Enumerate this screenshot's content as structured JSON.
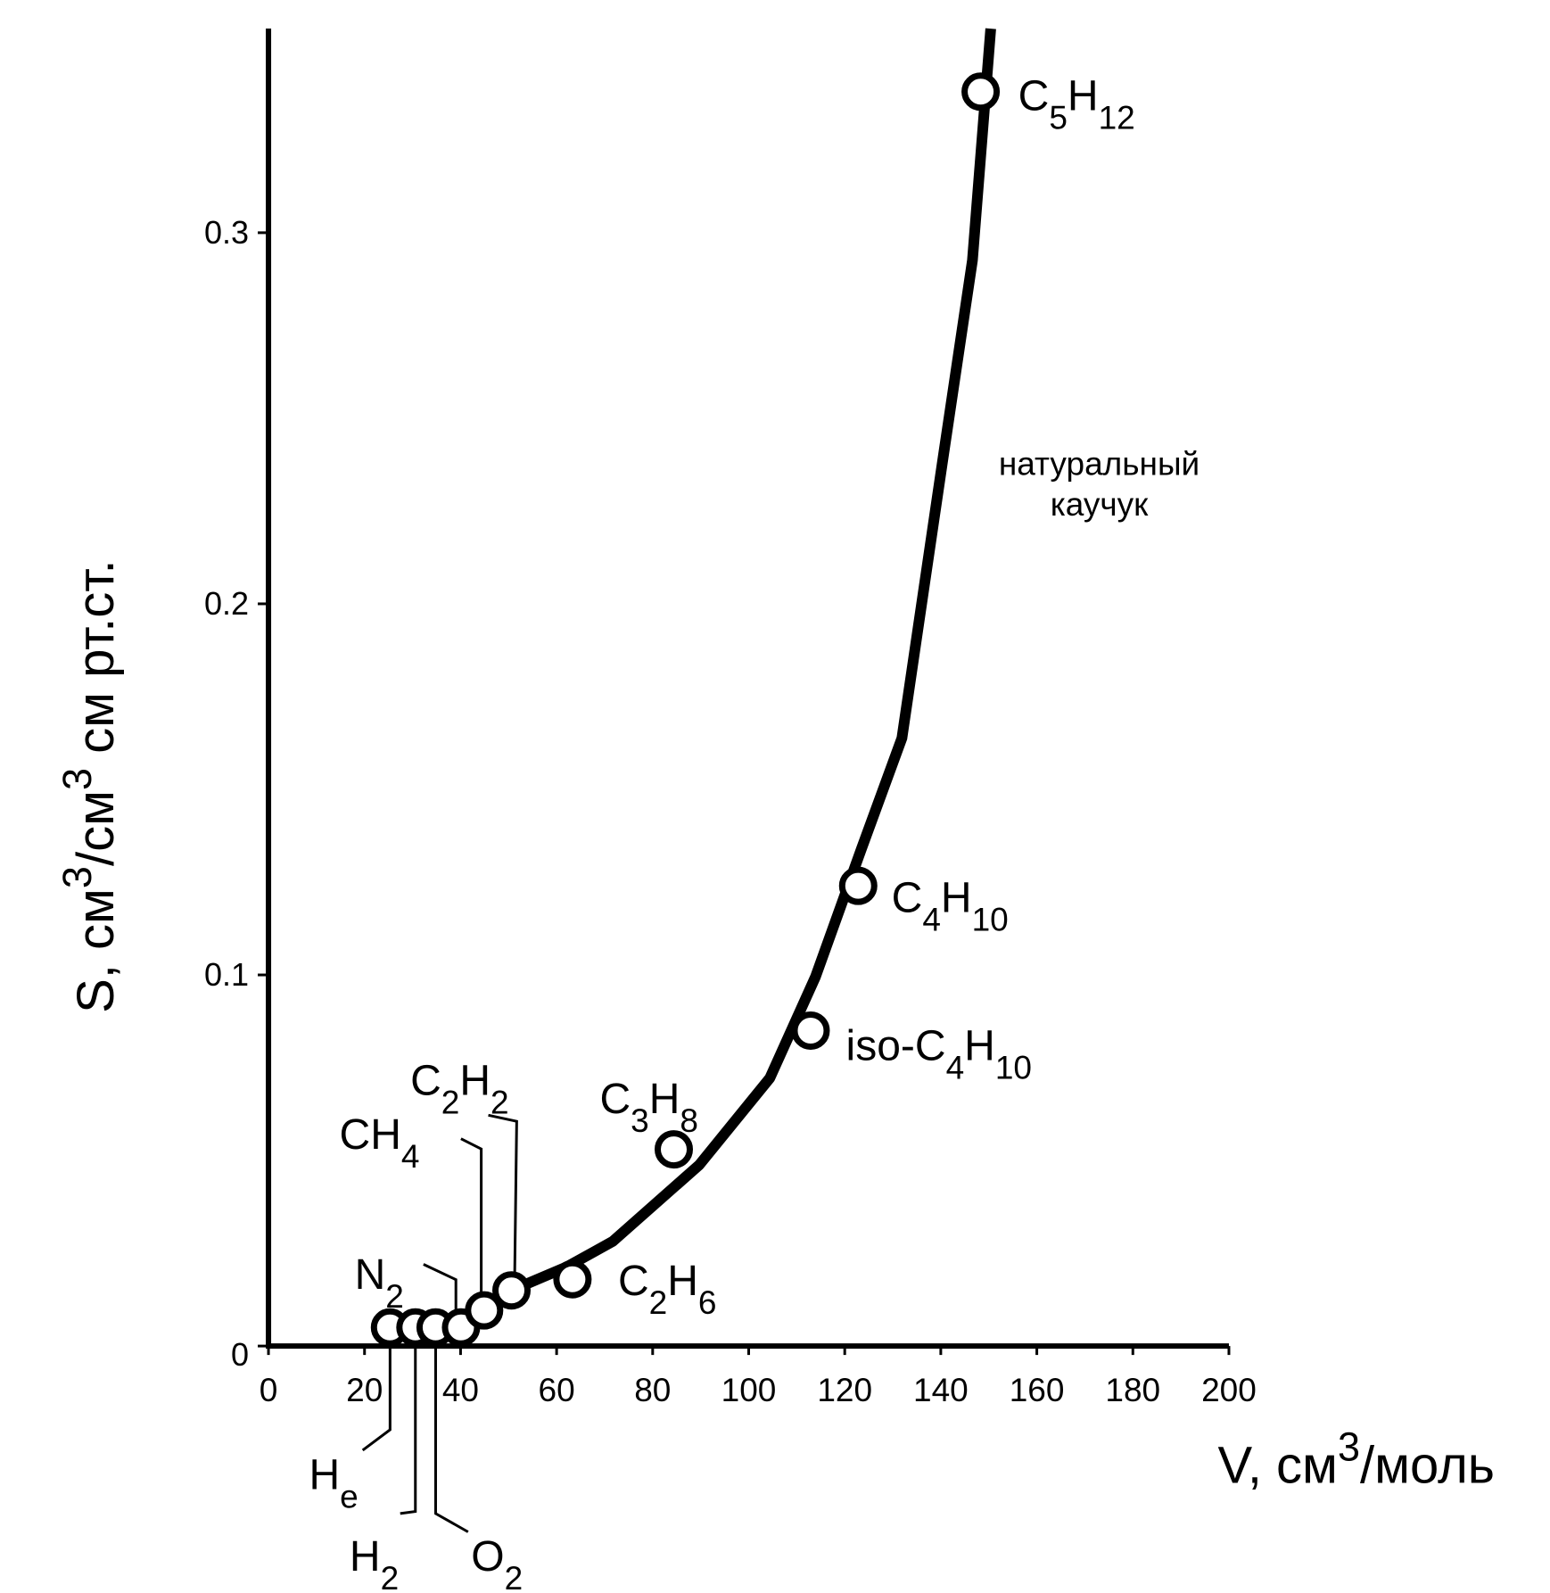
{
  "chart_data": {
    "type": "scatter",
    "x_label": [
      "V, см",
      "3",
      "/моль"
    ],
    "y_label": [
      "S, см",
      "3",
      "/см",
      "3",
      " см рт.ст."
    ],
    "xlim": [
      0,
      200
    ],
    "ylim": [
      0,
      0.355
    ],
    "xticks": [
      0,
      20,
      40,
      60,
      80,
      100,
      120,
      140,
      160,
      180,
      200
    ],
    "yticks": [
      0,
      0.1,
      0.2,
      0.3
    ],
    "color": "#000000",
    "points": {
      "x": [
        25.3,
        30.6,
        34.8,
        40.1,
        44.9,
        50.6,
        63.3,
        84.4,
        112.9,
        122.8,
        148.3
      ],
      "y": [
        0.005,
        0.005,
        0.005,
        0.005,
        0.0096,
        0.015,
        0.018,
        0.053,
        0.085,
        0.124,
        0.338
      ],
      "labels": [
        [
          "H",
          "e"
        ],
        [
          "H",
          "2"
        ],
        [
          "O",
          "2"
        ],
        [
          "N",
          "2"
        ],
        [
          "CH",
          "4"
        ],
        [
          "C",
          "2",
          "H",
          "2"
        ],
        [
          "C",
          "2",
          "H",
          "6"
        ],
        [
          "C",
          "3",
          "H",
          "8"
        ],
        [
          "iso-C",
          "4",
          "H",
          "10"
        ],
        [
          "C",
          "4",
          "H",
          "10"
        ],
        [
          "C",
          "5",
          "H",
          "12"
        ]
      ]
    },
    "curve": {
      "x": [
        44.9,
        50.6,
        62.2,
        71.7,
        89.7,
        104.4,
        113.9,
        123.4,
        131.9,
        140.3,
        146.6,
        150.4
      ],
      "y": [
        0.0096,
        0.015,
        0.0214,
        0.0282,
        0.0488,
        0.0722,
        0.0995,
        0.1337,
        0.1638,
        0.2378,
        0.2926,
        0.355
      ]
    },
    "annotation": [
      "натуральный",
      "каучук"
    ]
  }
}
